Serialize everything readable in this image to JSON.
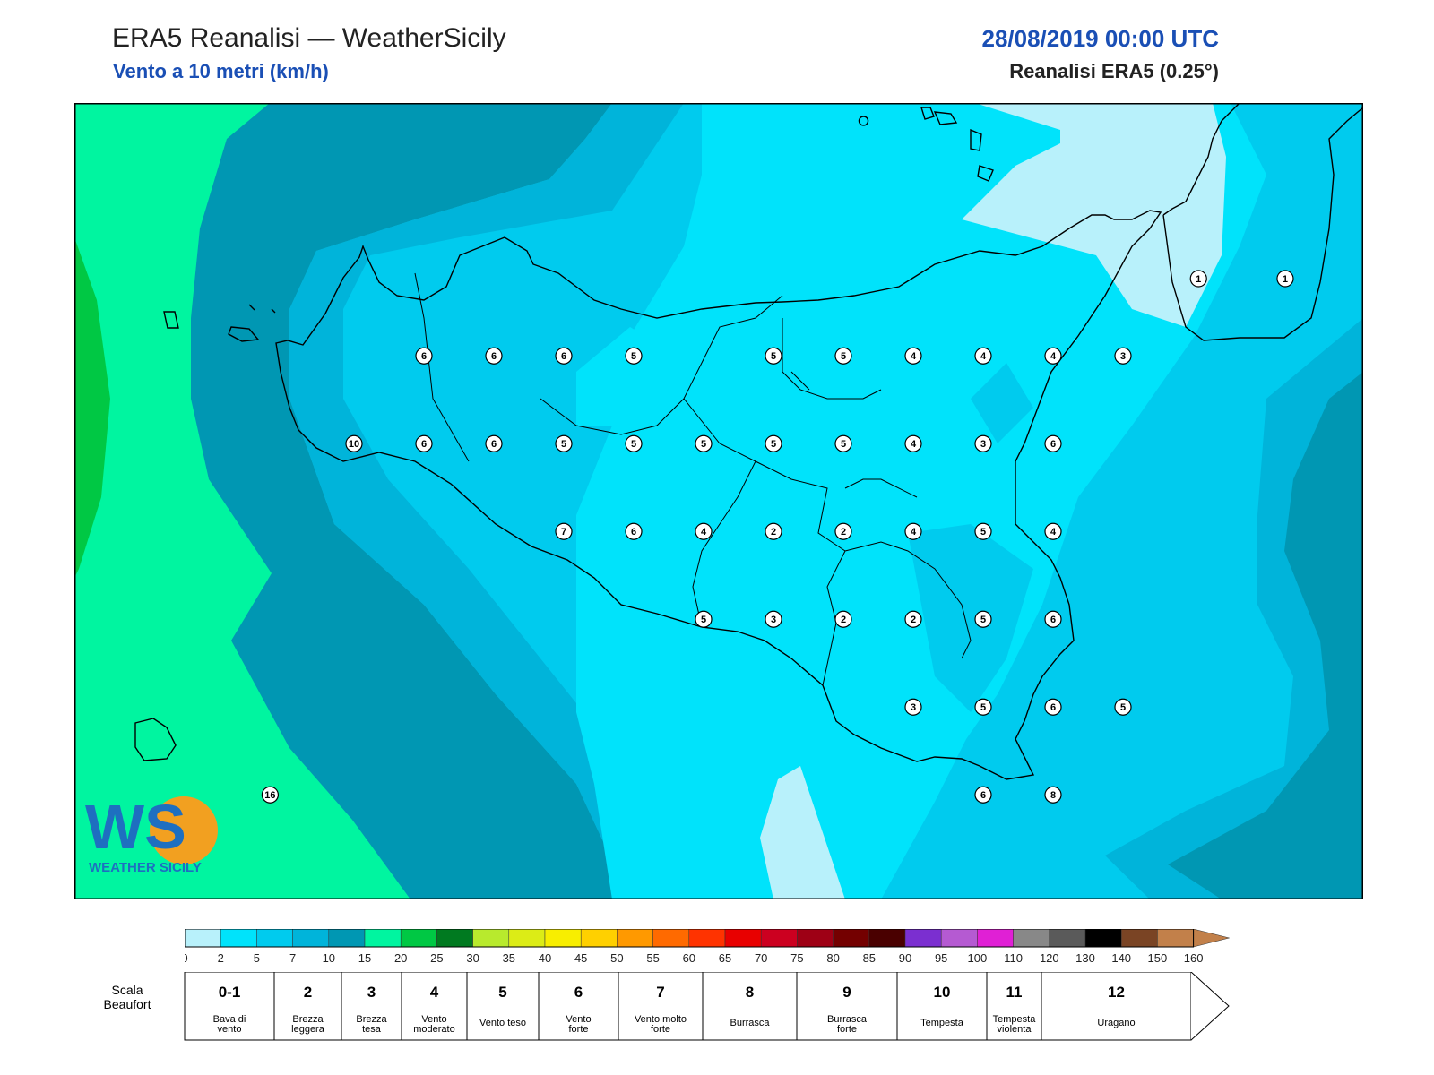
{
  "header": {
    "title": "ERA5 Reanalisi — WeatherSicily",
    "subtitle": "Vento a 10 metri (km/h)",
    "datetime": "28/08/2019 00:00 UTC",
    "source": "Reanalisi ERA5 (0.25°)"
  },
  "logo": {
    "letters": "WS",
    "text": "WEATHER SICILY"
  },
  "map": {
    "stations": [
      {
        "v": "1",
        "c": [
          15.27,
          38.22
        ]
      },
      {
        "v": "1",
        "c": [
          15.58,
          38.22
        ]
      },
      {
        "v": "6",
        "c": [
          12.5,
          38.0
        ]
      },
      {
        "v": "6",
        "c": [
          12.75,
          38.0
        ]
      },
      {
        "v": "6",
        "c": [
          13.0,
          38.0
        ]
      },
      {
        "v": "5",
        "c": [
          13.25,
          38.0
        ]
      },
      {
        "v": "5",
        "c": [
          13.75,
          38.0
        ]
      },
      {
        "v": "5",
        "c": [
          14.0,
          38.0
        ]
      },
      {
        "v": "4",
        "c": [
          14.25,
          38.0
        ]
      },
      {
        "v": "4",
        "c": [
          14.5,
          38.0
        ]
      },
      {
        "v": "4",
        "c": [
          14.75,
          38.0
        ]
      },
      {
        "v": "3",
        "c": [
          15.0,
          38.0
        ]
      },
      {
        "v": "10",
        "c": [
          12.25,
          37.75
        ]
      },
      {
        "v": "6",
        "c": [
          12.5,
          37.75
        ]
      },
      {
        "v": "6",
        "c": [
          12.75,
          37.75
        ]
      },
      {
        "v": "5",
        "c": [
          13.0,
          37.75
        ]
      },
      {
        "v": "5",
        "c": [
          13.25,
          37.75
        ]
      },
      {
        "v": "5",
        "c": [
          13.5,
          37.75
        ]
      },
      {
        "v": "5",
        "c": [
          13.75,
          37.75
        ]
      },
      {
        "v": "5",
        "c": [
          14.0,
          37.75
        ]
      },
      {
        "v": "4",
        "c": [
          14.25,
          37.75
        ]
      },
      {
        "v": "3",
        "c": [
          14.5,
          37.75
        ]
      },
      {
        "v": "6",
        "c": [
          14.75,
          37.75
        ]
      },
      {
        "v": "7",
        "c": [
          13.0,
          37.5
        ]
      },
      {
        "v": "6",
        "c": [
          13.25,
          37.5
        ]
      },
      {
        "v": "4",
        "c": [
          13.5,
          37.5
        ]
      },
      {
        "v": "2",
        "c": [
          13.75,
          37.5
        ]
      },
      {
        "v": "2",
        "c": [
          14.0,
          37.5
        ]
      },
      {
        "v": "4",
        "c": [
          14.25,
          37.5
        ]
      },
      {
        "v": "5",
        "c": [
          14.5,
          37.5
        ]
      },
      {
        "v": "4",
        "c": [
          14.75,
          37.5
        ]
      },
      {
        "v": "5",
        "c": [
          13.5,
          37.25
        ]
      },
      {
        "v": "3",
        "c": [
          13.75,
          37.25
        ]
      },
      {
        "v": "2",
        "c": [
          14.0,
          37.25
        ]
      },
      {
        "v": "2",
        "c": [
          14.25,
          37.25
        ]
      },
      {
        "v": "5",
        "c": [
          14.5,
          37.25
        ]
      },
      {
        "v": "6",
        "c": [
          14.75,
          37.25
        ]
      },
      {
        "v": "3",
        "c": [
          14.25,
          37.0
        ]
      },
      {
        "v": "5",
        "c": [
          14.5,
          37.0
        ]
      },
      {
        "v": "6",
        "c": [
          14.75,
          37.0
        ]
      },
      {
        "v": "5",
        "c": [
          15.0,
          37.0
        ]
      },
      {
        "v": "6",
        "c": [
          14.5,
          36.75
        ]
      },
      {
        "v": "8",
        "c": [
          14.75,
          36.75
        ]
      },
      {
        "v": "16",
        "c": [
          11.95,
          36.75
        ]
      }
    ]
  },
  "colorbar": {
    "ticks": [
      "0",
      "2",
      "5",
      "7",
      "10",
      "15",
      "20",
      "25",
      "30",
      "35",
      "40",
      "45",
      "50",
      "55",
      "60",
      "65",
      "70",
      "75",
      "80",
      "85",
      "90",
      "95",
      "100",
      "110",
      "120",
      "130",
      "140",
      "150",
      "160"
    ],
    "colors": [
      "#b8f1fb",
      "#00e3fb",
      "#00cbee",
      "#00b4da",
      "#0097b3",
      "#00f5a0",
      "#00c844",
      "#007a20",
      "#b8ea2d",
      "#dcec16",
      "#f8ee00",
      "#ffd000",
      "#ff9900",
      "#ff6a00",
      "#ff3300",
      "#e80000",
      "#cc0020",
      "#9e0015",
      "#740000",
      "#4a0000",
      "#7b2fd0",
      "#b55ad2",
      "#e020d5",
      "#888888",
      "#5a5a5a",
      "#000000",
      "#7a4424",
      "#c2804a"
    ]
  },
  "beaufort": {
    "label": "Scala Beaufort",
    "classes": [
      {
        "n": "0-1",
        "name": "Bava di vento"
      },
      {
        "n": "2",
        "name": "Brezza leggera"
      },
      {
        "n": "3",
        "name": "Brezza tesa"
      },
      {
        "n": "4",
        "name": "Vento moderato"
      },
      {
        "n": "5",
        "name": "Vento teso"
      },
      {
        "n": "6",
        "name": "Vento forte"
      },
      {
        "n": "7",
        "name": "Vento molto forte"
      },
      {
        "n": "8",
        "name": "Burrasca"
      },
      {
        "n": "9",
        "name": "Burrasca forte"
      },
      {
        "n": "10",
        "name": "Tempesta"
      },
      {
        "n": "11",
        "name": "Tempesta violenta"
      },
      {
        "n": "12",
        "name": "Uragano"
      }
    ]
  }
}
